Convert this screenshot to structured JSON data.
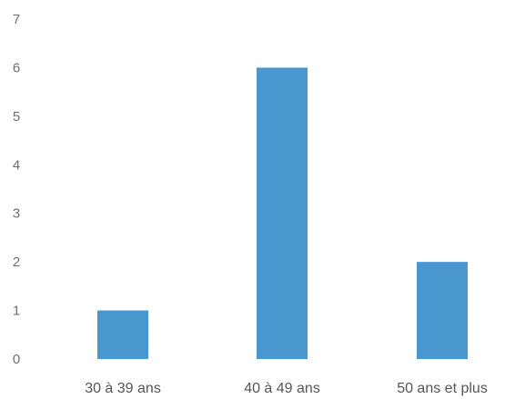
{
  "chart_data": {
    "type": "bar",
    "title": "",
    "xlabel": "",
    "ylabel": "",
    "categories": [
      "30 à 39 ans",
      "40 à 49 ans",
      "50 ans et plus"
    ],
    "values": [
      1,
      6,
      2
    ],
    "ylim": [
      0,
      7
    ],
    "yticks": [
      "0",
      "1",
      "2",
      "3",
      "4",
      "5",
      "6",
      "7"
    ],
    "grid": false,
    "legend": "none",
    "bar_color": "#4a97cf"
  }
}
